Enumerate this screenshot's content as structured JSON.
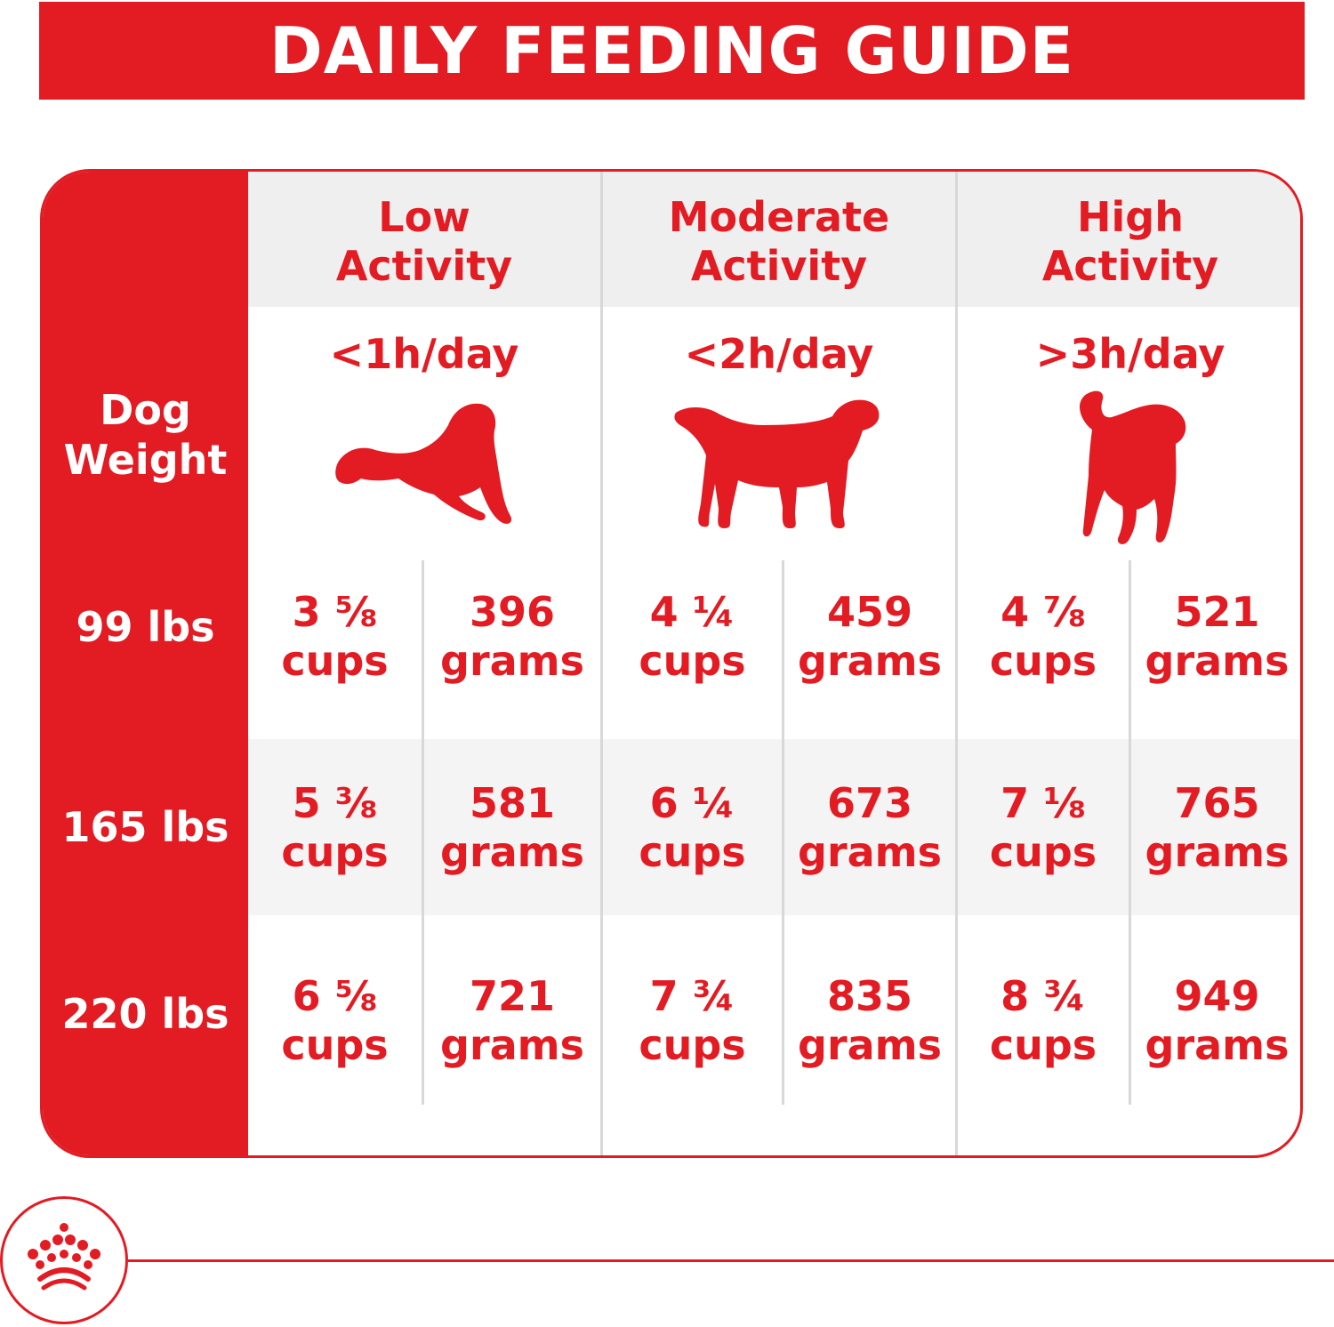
{
  "title": "DAILY FEEDING GUIDE",
  "weight_header": [
    "Dog",
    "Weight"
  ],
  "activities": [
    {
      "title": [
        "Low",
        "Activity"
      ],
      "time": "<1h/day",
      "icon": "lying-dog-icon"
    },
    {
      "title": [
        "Moderate",
        "Activity"
      ],
      "time": "<2h/day",
      "icon": "standing-dog-icon"
    },
    {
      "title": [
        "High",
        "Activity"
      ],
      "time": ">3h/day",
      "icon": "running-dog-icon"
    }
  ],
  "rows": [
    {
      "weight": "99 lbs",
      "values": [
        [
          "3 ⅝",
          "cups"
        ],
        [
          "396",
          "grams"
        ],
        [
          "4 ¼",
          "cups"
        ],
        [
          "459",
          "grams"
        ],
        [
          "4 ⅞",
          "cups"
        ],
        [
          "521",
          "grams"
        ]
      ]
    },
    {
      "weight": "165 lbs",
      "values": [
        [
          "5 ⅜",
          "cups"
        ],
        [
          "581",
          "grams"
        ],
        [
          "6 ¼",
          "cups"
        ],
        [
          "673",
          "grams"
        ],
        [
          "7 ⅛",
          "cups"
        ],
        [
          "765",
          "grams"
        ]
      ]
    },
    {
      "weight": "220 lbs",
      "values": [
        [
          "6 ⅝",
          "cups"
        ],
        [
          "721",
          "grams"
        ],
        [
          "7 ¾",
          "cups"
        ],
        [
          "835",
          "grams"
        ],
        [
          "8 ¾",
          "cups"
        ],
        [
          "949",
          "grams"
        ]
      ]
    }
  ],
  "logo": "royal-crown-logo",
  "colors": {
    "brand_red": "#e31b23",
    "header_gray": "#efefef",
    "divider_gray": "#d8d8d8"
  }
}
